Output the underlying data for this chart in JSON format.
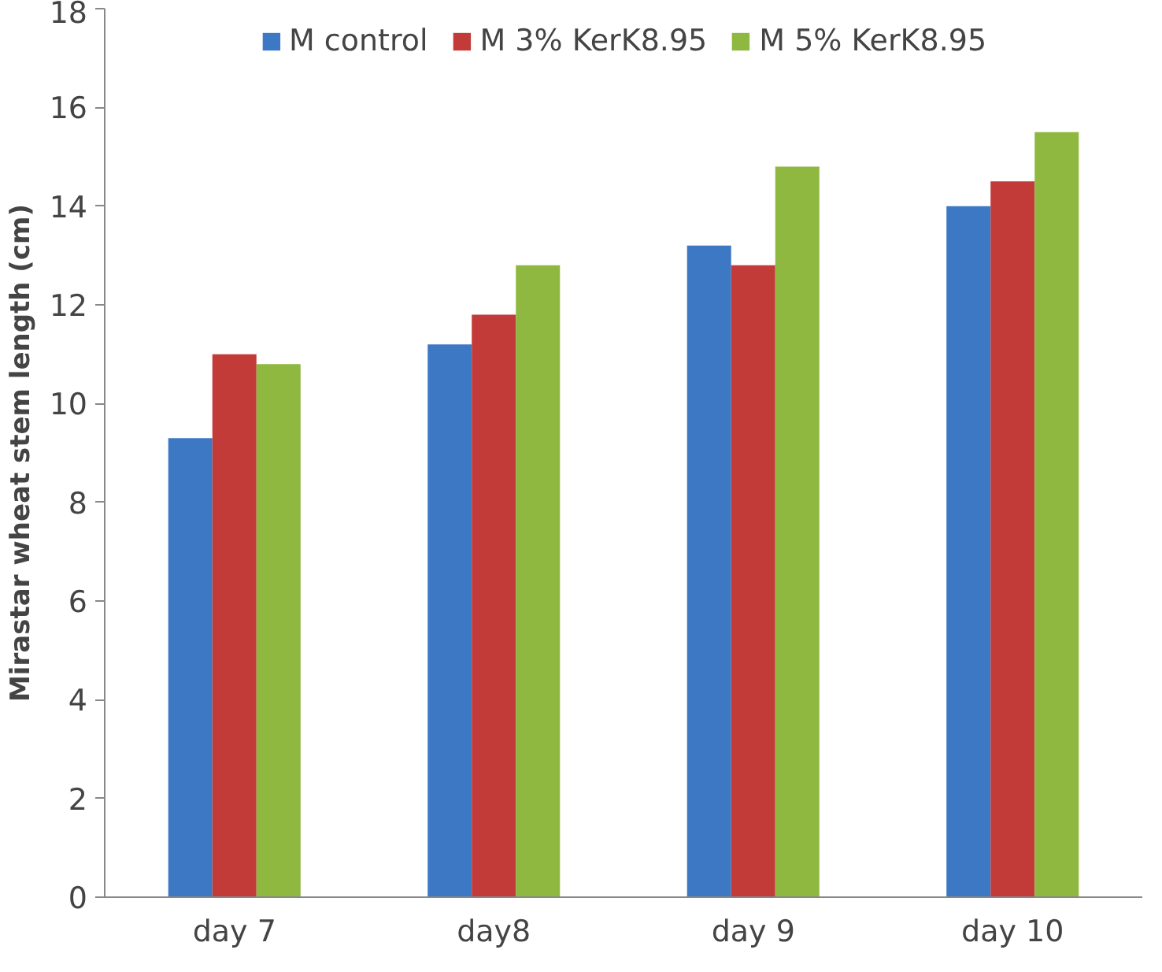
{
  "chart_data": {
    "type": "bar",
    "ylabel": "Mirastar wheat stem length (cm)",
    "categories": [
      "day 7",
      "day8",
      "day 9",
      "day 10"
    ],
    "series": [
      {
        "name": "M control",
        "color": "#3d78c4",
        "values": [
          9.3,
          11.2,
          13.2,
          14.0
        ]
      },
      {
        "name": "M 3% KerK8.95",
        "color": "#c23b38",
        "values": [
          11.0,
          11.8,
          12.8,
          14.5
        ]
      },
      {
        "name": "M 5% KerK8.95",
        "color": "#8fb841",
        "values": [
          10.8,
          12.8,
          14.8,
          15.5
        ]
      }
    ],
    "ylim": [
      0,
      18
    ],
    "yticks": [
      0,
      2,
      4,
      6,
      8,
      10,
      12,
      14,
      16,
      18
    ],
    "grid": false,
    "legend": "top"
  }
}
